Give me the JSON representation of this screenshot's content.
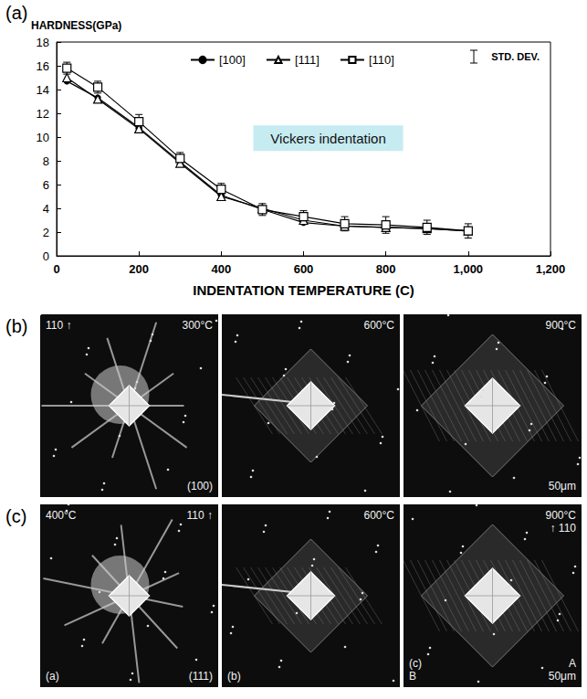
{
  "chart_data": {
    "type": "line",
    "panel_label": "(a)",
    "y_label": "HARDNESS(GPa)",
    "x_label": "INDENTATION TEMPERATURE (C)",
    "annotation": "Vickers indentation",
    "error_key": "STD. DEV.",
    "x": [
      25,
      100,
      200,
      300,
      400,
      500,
      600,
      700,
      800,
      900,
      1000
    ],
    "series": [
      {
        "name": "[100]",
        "color": "#000000",
        "marker": "dot",
        "line_style": "solid",
        "values": [
          14.7,
          13.3,
          10.8,
          7.9,
          5.1,
          3.9,
          2.8,
          2.5,
          2.4,
          2.3,
          2.1
        ]
      },
      {
        "name": "[111]",
        "color": "#000000",
        "marker": "triangle-open",
        "line_style": "solid",
        "values": [
          15.0,
          13.2,
          10.7,
          7.8,
          5.0,
          4.0,
          3.0,
          2.5,
          2.4,
          2.3,
          2.1
        ]
      },
      {
        "name": "[110]",
        "color": "#000000",
        "marker": "square-open",
        "line_style": "solid",
        "values": [
          15.8,
          14.2,
          11.3,
          8.2,
          5.6,
          3.9,
          3.3,
          2.7,
          2.6,
          2.4,
          2.1
        ],
        "errors": [
          0.5,
          0.5,
          0.6,
          0.5,
          0.5,
          0.5,
          0.5,
          0.6,
          0.7,
          0.6,
          0.6
        ]
      }
    ],
    "xlim": [
      0,
      1200
    ],
    "xticks": [
      0,
      200,
      400,
      600,
      800,
      1000,
      1200
    ],
    "ylim": [
      0,
      18
    ],
    "yticks": [
      0,
      2,
      4,
      6,
      8,
      10,
      12,
      14,
      16,
      18
    ],
    "grid": false,
    "legend": "top"
  },
  "panels": [
    {
      "letter": "(b)",
      "images": [
        {
          "top_left": [
            "110 ↑"
          ],
          "top_right": [
            "300°C"
          ],
          "bottom_left": [],
          "bottom_right": [
            "(100)"
          ]
        },
        {
          "top_left": [],
          "top_right": [
            "600°C"
          ],
          "bottom_left": [],
          "bottom_right": []
        },
        {
          "top_left": [],
          "top_right": [
            "900°C"
          ],
          "bottom_left": [],
          "bottom_right": [
            "50μm"
          ]
        }
      ]
    },
    {
      "letter": "(c)",
      "images": [
        {
          "top_left": [
            "400°C"
          ],
          "top_right": [
            "110 ↑"
          ],
          "bottom_left": [
            "(a)"
          ],
          "bottom_right": [
            "(111)"
          ]
        },
        {
          "top_left": [],
          "top_right": [
            "600°C"
          ],
          "bottom_left": [
            "(b)"
          ],
          "bottom_right": []
        },
        {
          "top_left": [],
          "top_right": [
            "900°C",
            "↑ 110"
          ],
          "bottom_left": [
            "(c)",
            "B"
          ],
          "bottom_right": [
            "A",
            "50μm"
          ]
        }
      ]
    }
  ]
}
